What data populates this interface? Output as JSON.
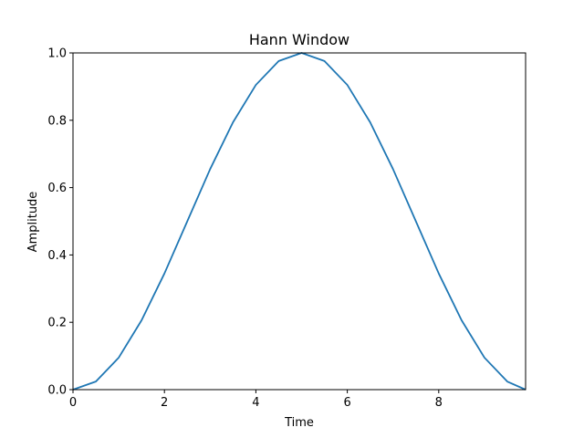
{
  "chart_data": {
    "type": "line",
    "title": "Hann Window",
    "xlabel": "Time",
    "ylabel": "Amplitude",
    "xlim": [
      0,
      9.9
    ],
    "ylim": [
      0,
      1.0
    ],
    "xticks": [
      0,
      2,
      4,
      6,
      8
    ],
    "xtick_labels": [
      "0",
      "2",
      "4",
      "6",
      "8"
    ],
    "yticks": [
      0.0,
      0.2,
      0.4,
      0.6,
      0.8,
      1.0
    ],
    "ytick_labels": [
      "0.0",
      "0.2",
      "0.4",
      "0.6",
      "0.8",
      "1.0"
    ],
    "grid": false,
    "legend": "none",
    "colors": {
      "line": "#1f77b4",
      "axes": "#000000",
      "background": "#ffffff"
    },
    "series": [
      {
        "x": [
          0,
          0.5,
          1,
          1.5,
          2,
          2.5,
          3,
          3.5,
          4,
          4.5,
          5,
          5.5,
          6,
          6.5,
          7,
          7.5,
          8,
          8.5,
          9,
          9.5,
          9.9
        ],
        "values": [
          0.0,
          0.024,
          0.095,
          0.206,
          0.345,
          0.5,
          0.655,
          0.794,
          0.905,
          0.976,
          1.0,
          0.976,
          0.905,
          0.794,
          0.655,
          0.5,
          0.345,
          0.206,
          0.095,
          0.024,
          0.0
        ]
      }
    ]
  }
}
